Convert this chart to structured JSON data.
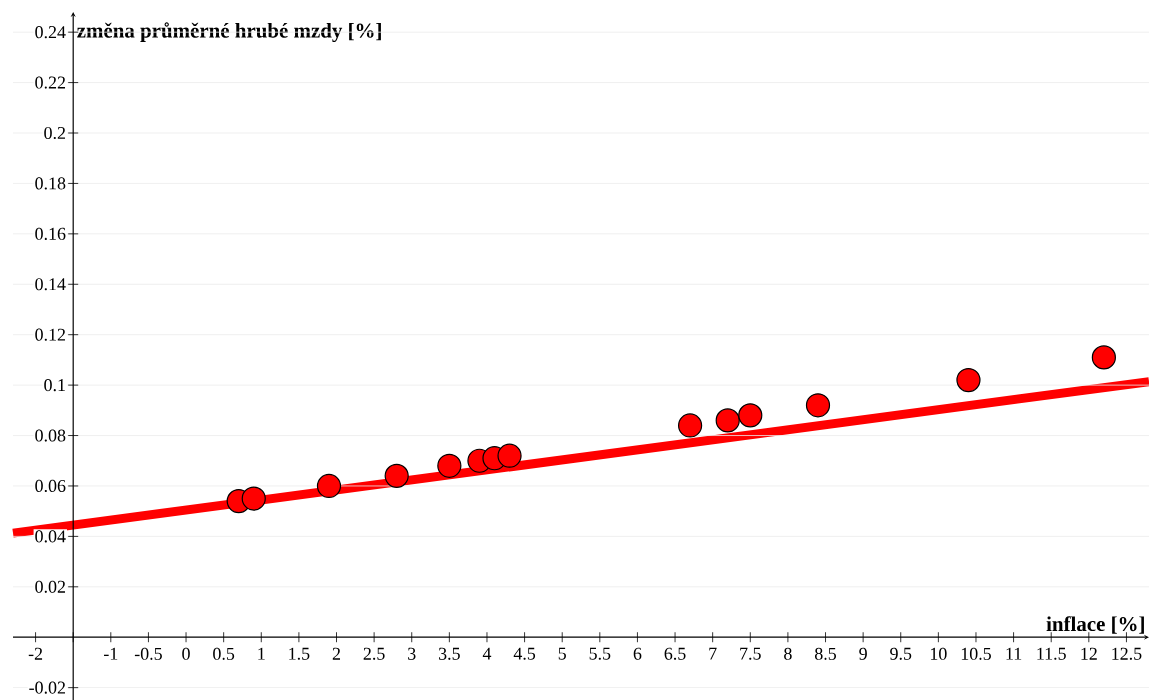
{
  "chart_data": {
    "type": "scatter",
    "xlabel": "inflace [%]",
    "ylabel": "změna průměrné hrubé mzdy [%]",
    "series": [
      {
        "marker": "circle",
        "color": "#ff0000",
        "x": [
          0.7,
          0.9,
          1.9,
          2.8,
          3.5,
          3.9,
          4.1,
          4.3,
          6.7,
          7.2,
          7.5,
          8.4,
          10.4,
          12.2
        ],
        "values": [
          0.054,
          0.055,
          0.06,
          0.064,
          0.068,
          0.07,
          0.071,
          0.072,
          0.084,
          0.086,
          0.088,
          0.092,
          0.102,
          0.111
        ]
      },
      {
        "type": "line",
        "marker": "none",
        "color": "#ff0000",
        "x": [
          -2.3,
          12.8
        ],
        "values": [
          0.0413,
          0.1014
        ]
      }
    ],
    "grid": "y",
    "xlim": [
      -2.3,
      12.8
    ],
    "ylim": [
      -0.025,
      0.248
    ],
    "xticks": [
      -2,
      {
        "value": -1.5,
        "label": null
      },
      -1,
      -0.5,
      0,
      0.5,
      1,
      1.5,
      2,
      2.5,
      3,
      3.5,
      4,
      4.5,
      5,
      5.5,
      6,
      6.5,
      7,
      7.5,
      8,
      8.5,
      9,
      9.5,
      10,
      10.5,
      11,
      11.5,
      12,
      12.5
    ],
    "yticks": [
      -0.02,
      0.02,
      0.04,
      0.06,
      0.08,
      0.1,
      0.12,
      0.14,
      0.16,
      0.18,
      0.2,
      0.22,
      0.24
    ]
  }
}
